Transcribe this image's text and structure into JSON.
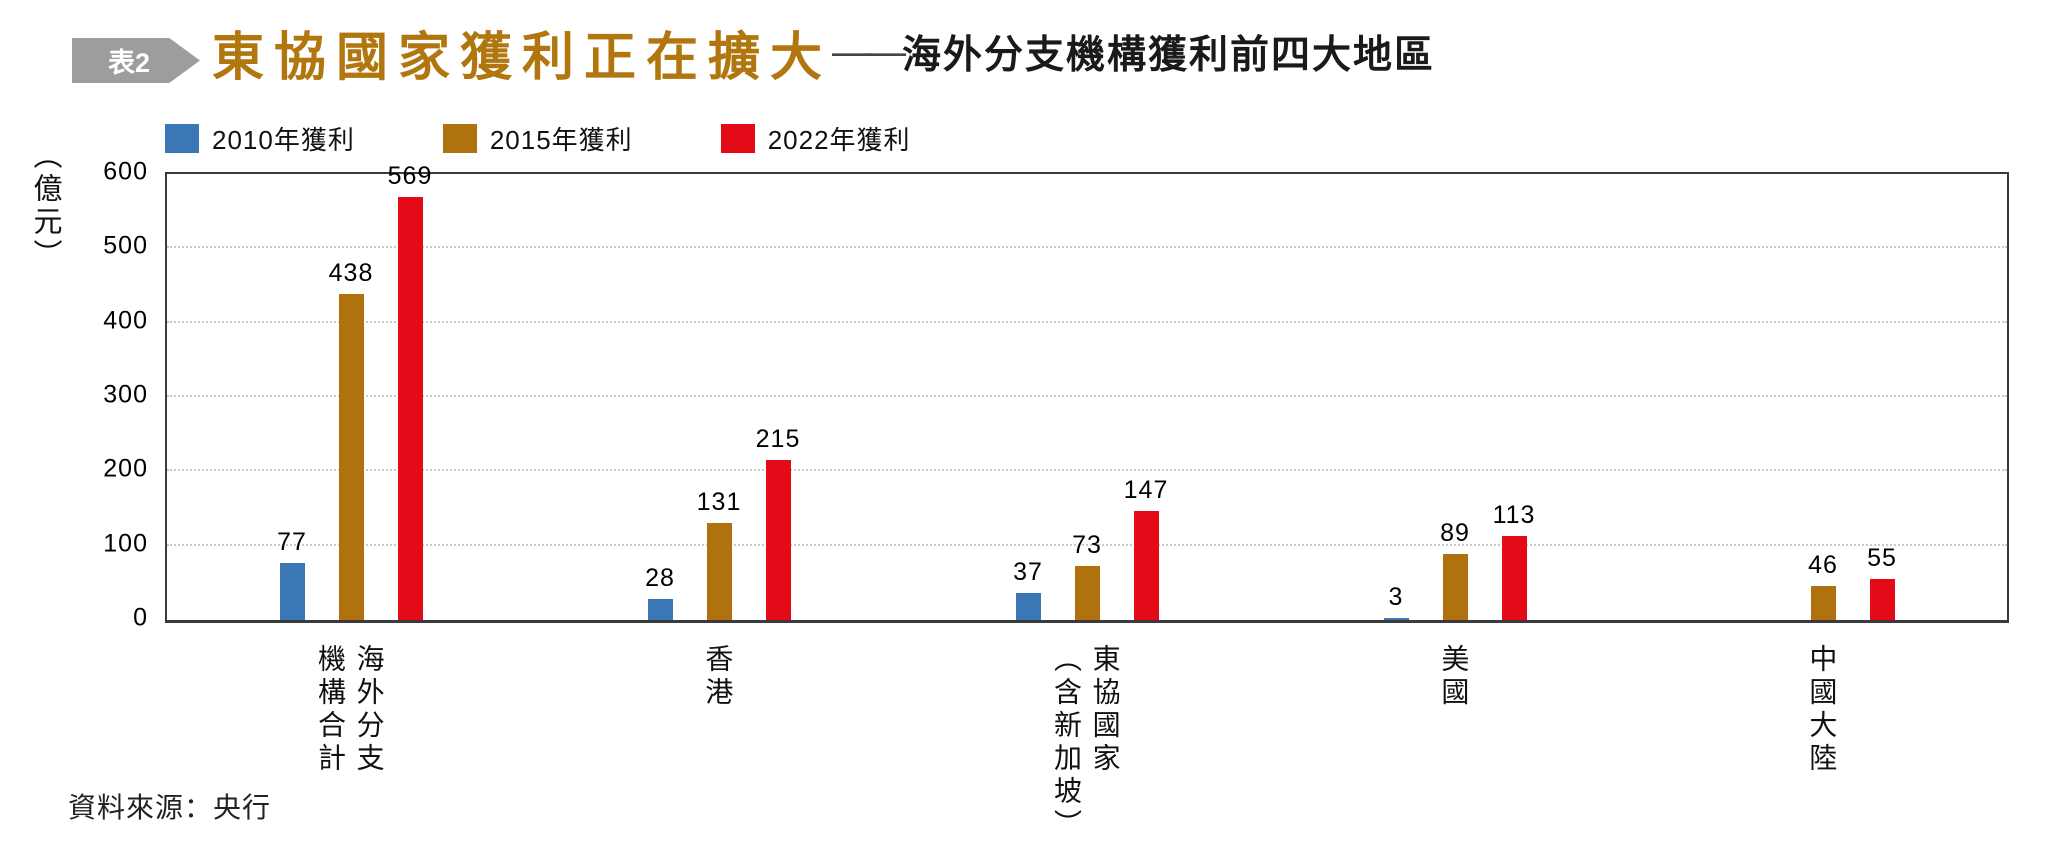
{
  "header": {
    "badge": "表2",
    "title": "東協國家獲利正在擴大",
    "dash": "——",
    "subtitle": "海外分支機構獲利前四大地區"
  },
  "source": "資料來源：央行",
  "colors": {
    "title_gold": "#b1770e",
    "badge_gray": "#9d9d9d",
    "axis": "#3a3a3a",
    "grid": "#c9c9c9",
    "series_blue": "#3b77b5",
    "series_gold": "#b0720f",
    "series_red": "#e30b17"
  },
  "chart_data": {
    "type": "bar",
    "title": "東協國家獲利正在擴大——海外分支機構獲利前四大地區",
    "ylabel": "（億元）",
    "xlabel": "",
    "ylim": [
      0,
      600
    ],
    "yticks": [
      0,
      100,
      200,
      300,
      400,
      500,
      600
    ],
    "grid": "horizontal dotted lines at 100,200,300,400,500",
    "legend_position": "top-left",
    "categories": [
      "海外分支\n機構合計",
      "香港",
      "東協國家\n（含新加坡）",
      "美國",
      "中國大陸"
    ],
    "series": [
      {
        "name": "2010年獲利",
        "color": "#3b77b5",
        "values": [
          77,
          28,
          37,
          3,
          null
        ]
      },
      {
        "name": "2015年獲利",
        "color": "#b0720f",
        "values": [
          438,
          131,
          73,
          89,
          46
        ]
      },
      {
        "name": "2022年獲利",
        "color": "#e30b17",
        "values": [
          569,
          215,
          147,
          113,
          55
        ]
      }
    ]
  }
}
